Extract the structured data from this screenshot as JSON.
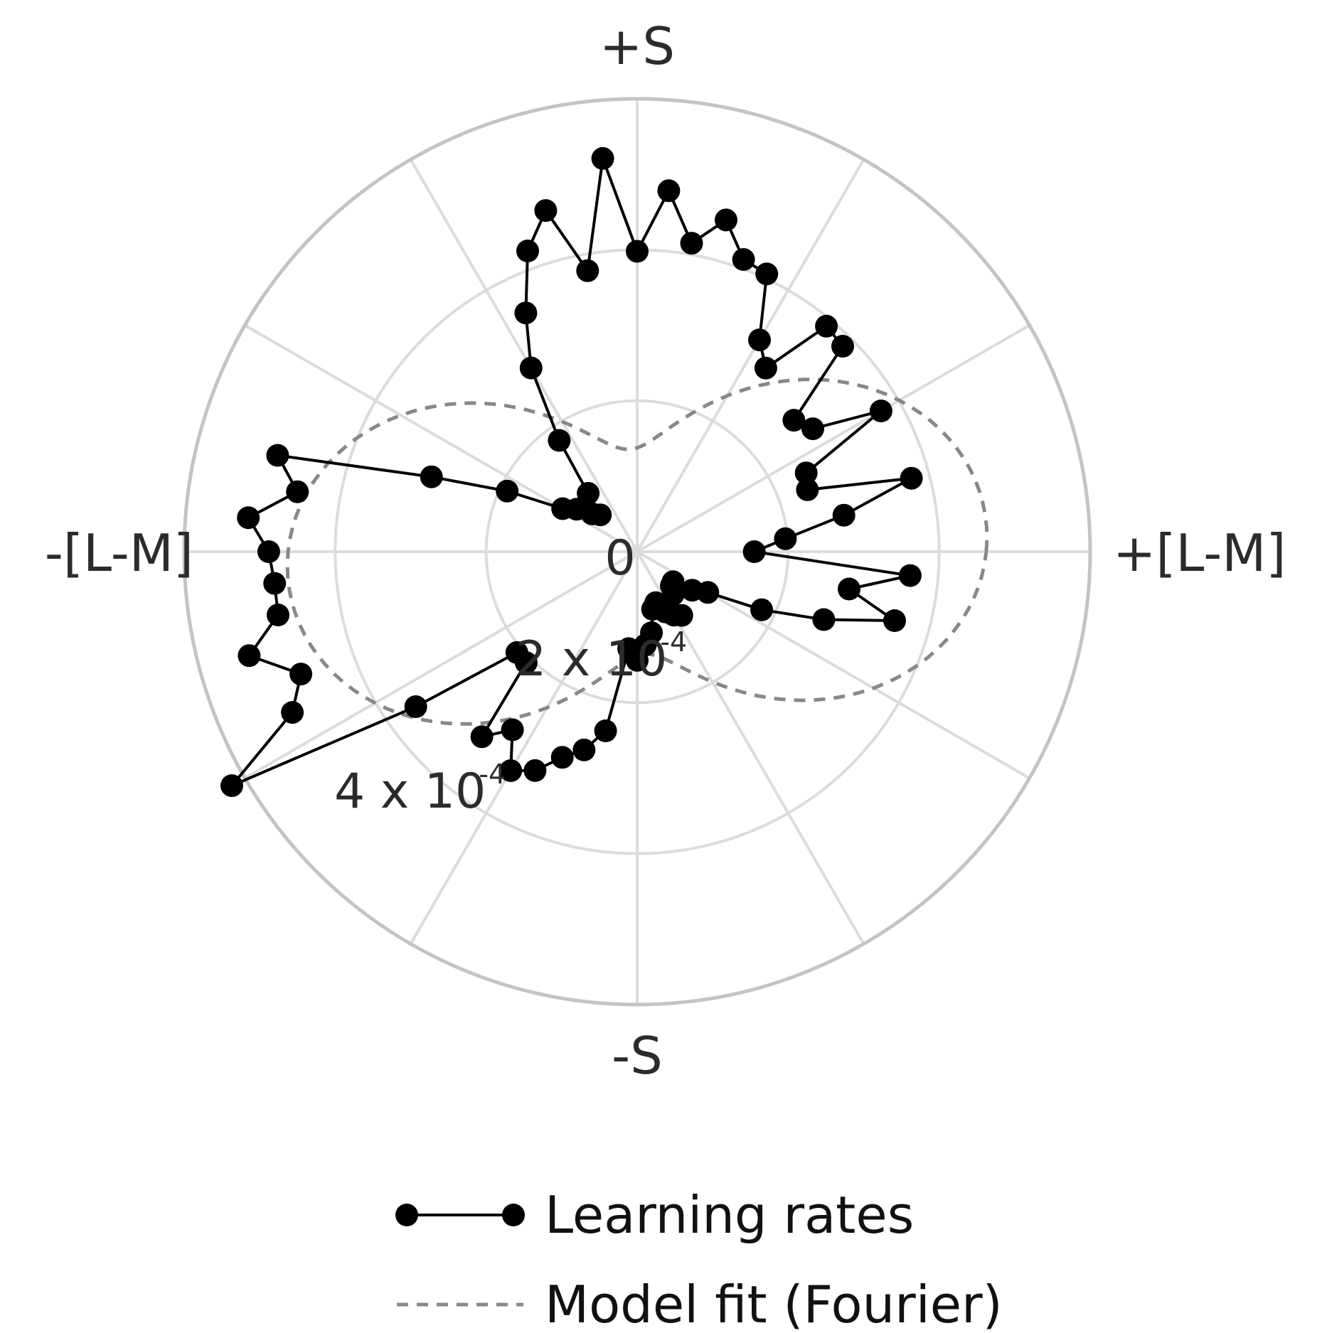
{
  "chart_data": {
    "type": "polar-line",
    "angular_labels": {
      "top": "+S",
      "right": "+[L-M]",
      "bottom": "-S",
      "left": "-[L-M]"
    },
    "radial_tick_values": [
      0,
      0.0002,
      0.0004
    ],
    "radial_tick_labels": [
      "0",
      "2 x 10",
      "4 x 10"
    ],
    "radial_tick_exponent": "-4",
    "radial_max": 0.0006,
    "angular_grid_step_deg": 30,
    "legend": {
      "placement": "bottom-center",
      "entries": [
        "Learning rates",
        "Model fit (Fourier)"
      ]
    },
    "colors": {
      "series": "#000000",
      "fit": "#888888",
      "grid": "#dcdcdc",
      "outer_ring": "#c4c4c4"
    },
    "series": [
      {
        "name": "Learning rates",
        "angle_deg": [
          0,
          5,
          10,
          15,
          20,
          25,
          30,
          35,
          40,
          45,
          50,
          55,
          60,
          65,
          70,
          75,
          80,
          85,
          90,
          95,
          100,
          105,
          110,
          115,
          120,
          125,
          130,
          135,
          140,
          145,
          150,
          155,
          160,
          165,
          170,
          175,
          180,
          185,
          190,
          195,
          200,
          205,
          210,
          215,
          220,
          225,
          230,
          235,
          240,
          245,
          250,
          255,
          260,
          265,
          270,
          275,
          280,
          285,
          290,
          295,
          300,
          305,
          310,
          315,
          320,
          325,
          330,
          335,
          340,
          345,
          350,
          355
        ],
        "values": [
          0.000155,
          0.000197,
          0.000278,
          0.000376,
          0.00024,
          0.000247,
          0.000373,
          0.000284,
          0.000271,
          0.000385,
          0.00039,
          0.000297,
          0.000324,
          0.000406,
          0.000412,
          0.000455,
          0.000415,
          0.00048,
          0.000398,
          0.000523,
          0.000378,
          0.000468,
          0.000424,
          0.000349,
          0.000281,
          0.00018,
          0.000101,
          6.9e-05,
          7.8e-05,
          9.8e-05,
          0.000114,
          0.00019,
          0.00029,
          0.000493,
          0.000457,
          0.000517,
          0.000488,
          0.000482,
          0.000483,
          0.000532,
          0.000474,
          0.000504,
          0.00062,
          0.000358,
          0.000208,
          0.000208,
          0.00032,
          0.000288,
          0.000335,
          0.00032,
          0.00029,
          0.000272,
          0.000241,
          0.000129,
          0.000144,
          0.000124,
          0.000109,
          7.9e-05,
          7.2e-05,
          8.8e-05,
          9.7e-05,
          0.000103,
          7.4e-05,
          6.4e-05,
          6.2e-05,
          8.9e-05,
          0.000108,
          0.000182,
          0.000263,
          0.000353,
          0.000285,
          0.000363
        ]
      }
    ],
    "fit": {
      "name": "Model fit (Fourier)",
      "model": "r = a + b*cos(2*(theta - phi))",
      "a": 0.0003,
      "b": 0.000164,
      "phi_deg": 4,
      "line_style": "dashed"
    }
  }
}
